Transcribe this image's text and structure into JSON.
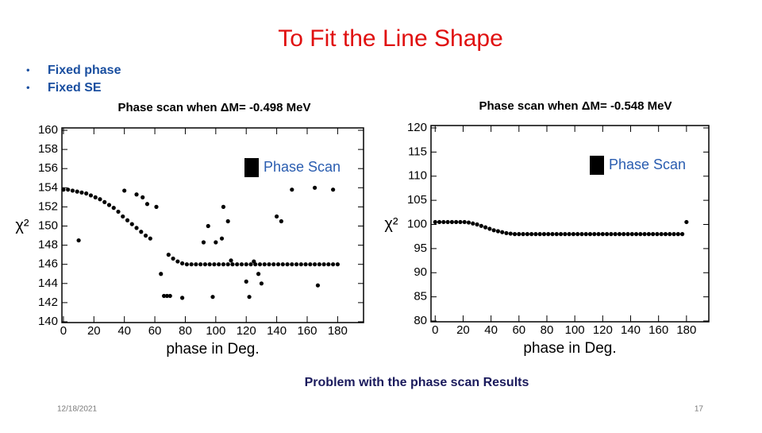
{
  "slide": {
    "title": "To Fit the Line Shape",
    "bullets": [
      "Fixed phase",
      "Fixed SE"
    ],
    "caption": "Problem with the phase scan Results",
    "date": "12/18/2021",
    "page": "17"
  },
  "chart_data": [
    {
      "type": "scatter",
      "title": "Phase scan when ΔM= -0.498 MeV",
      "xlabel": "phase in Deg.",
      "ylabel": "χ²",
      "xlim": [
        -1,
        197
      ],
      "ylim": [
        140,
        160
      ],
      "xticks": [
        0,
        20,
        40,
        60,
        80,
        100,
        120,
        140,
        160,
        180
      ],
      "yticks": [
        140,
        142,
        144,
        146,
        148,
        150,
        152,
        154,
        156,
        158,
        160
      ],
      "legend": "upper right",
      "series": [
        {
          "name": "Phase Scan",
          "color": "#000000",
          "x": [
            0,
            3,
            6,
            9,
            12,
            15,
            18,
            21,
            24,
            27,
            30,
            33,
            36,
            39,
            42,
            45,
            48,
            51,
            54,
            57,
            69,
            72,
            75,
            78,
            81,
            84,
            87,
            90,
            93,
            96,
            99,
            102,
            105,
            108,
            111,
            114,
            117,
            120,
            123,
            126,
            129,
            132,
            135,
            138,
            141,
            144,
            147,
            150,
            153,
            156,
            159,
            162,
            165,
            168,
            171,
            174,
            177,
            180,
            10,
            40,
            48,
            52,
            55,
            61,
            64,
            66,
            68,
            70,
            78,
            92,
            95,
            98,
            100,
            104,
            105,
            108,
            110,
            120,
            122,
            125,
            128,
            130,
            140,
            143,
            150,
            165,
            167,
            177
          ],
          "values": [
            153.8,
            153.8,
            153.7,
            153.6,
            153.5,
            153.4,
            153.2,
            153.0,
            152.8,
            152.5,
            152.2,
            151.9,
            151.5,
            151.0,
            150.6,
            150.2,
            149.8,
            149.4,
            149.0,
            148.7,
            147.0,
            146.6,
            146.3,
            146.1,
            146.0,
            146.0,
            146.0,
            146.0,
            146.0,
            146.0,
            146.0,
            146.0,
            146.0,
            146.0,
            146.0,
            146.0,
            146.0,
            146.0,
            146.0,
            146.0,
            146.0,
            146.0,
            146.0,
            146.0,
            146.0,
            146.0,
            146.0,
            146.0,
            146.0,
            146.0,
            146.0,
            146.0,
            146.0,
            146.0,
            146.0,
            146.0,
            146.0,
            146.0,
            148.5,
            153.7,
            153.3,
            153.0,
            152.3,
            152.0,
            145.0,
            142.7,
            142.7,
            142.7,
            142.5,
            148.3,
            150.0,
            142.6,
            148.3,
            148.7,
            152.0,
            150.5,
            146.4,
            144.2,
            142.6,
            146.3,
            145.0,
            144.0,
            151.0,
            150.5,
            153.8,
            154.0,
            143.8,
            153.8
          ]
        }
      ]
    },
    {
      "type": "scatter",
      "title": "Phase scan when ΔM= -0.548 MeV",
      "xlabel": "phase in Deg.",
      "ylabel": "χ²",
      "xlim": [
        -3,
        196
      ],
      "ylim": [
        80,
        120
      ],
      "xticks": [
        0,
        20,
        40,
        60,
        80,
        100,
        120,
        140,
        160,
        180
      ],
      "yticks": [
        80,
        85,
        90,
        95,
        100,
        105,
        110,
        115,
        120
      ],
      "legend": "upper right",
      "series": [
        {
          "name": "Phase Scan",
          "color": "#000000",
          "x": [
            0,
            3,
            6,
            9,
            12,
            15,
            18,
            21,
            24,
            27,
            30,
            33,
            36,
            39,
            42,
            45,
            48,
            51,
            54,
            57,
            60,
            63,
            66,
            69,
            72,
            75,
            78,
            81,
            84,
            87,
            90,
            93,
            96,
            99,
            102,
            105,
            108,
            111,
            114,
            117,
            120,
            123,
            126,
            129,
            132,
            135,
            138,
            141,
            144,
            147,
            150,
            153,
            156,
            159,
            162,
            165,
            168,
            171,
            174,
            177,
            180
          ],
          "values": [
            100.5,
            100.5,
            100.5,
            100.5,
            100.5,
            100.5,
            100.5,
            100.5,
            100.4,
            100.2,
            100.0,
            99.7,
            99.4,
            99.1,
            98.8,
            98.6,
            98.4,
            98.2,
            98.1,
            98.0,
            98.0,
            98.0,
            98.0,
            98.0,
            98.0,
            98.0,
            98.0,
            98.0,
            98.0,
            98.0,
            98.0,
            98.0,
            98.0,
            98.0,
            98.0,
            98.0,
            98.0,
            98.0,
            98.0,
            98.0,
            98.0,
            98.0,
            98.0,
            98.0,
            98.0,
            98.0,
            98.0,
            98.0,
            98.0,
            98.0,
            98.0,
            98.0,
            98.0,
            98.0,
            98.0,
            98.0,
            98.0,
            98.0,
            98.0,
            98.0,
            100.5
          ]
        }
      ]
    }
  ]
}
